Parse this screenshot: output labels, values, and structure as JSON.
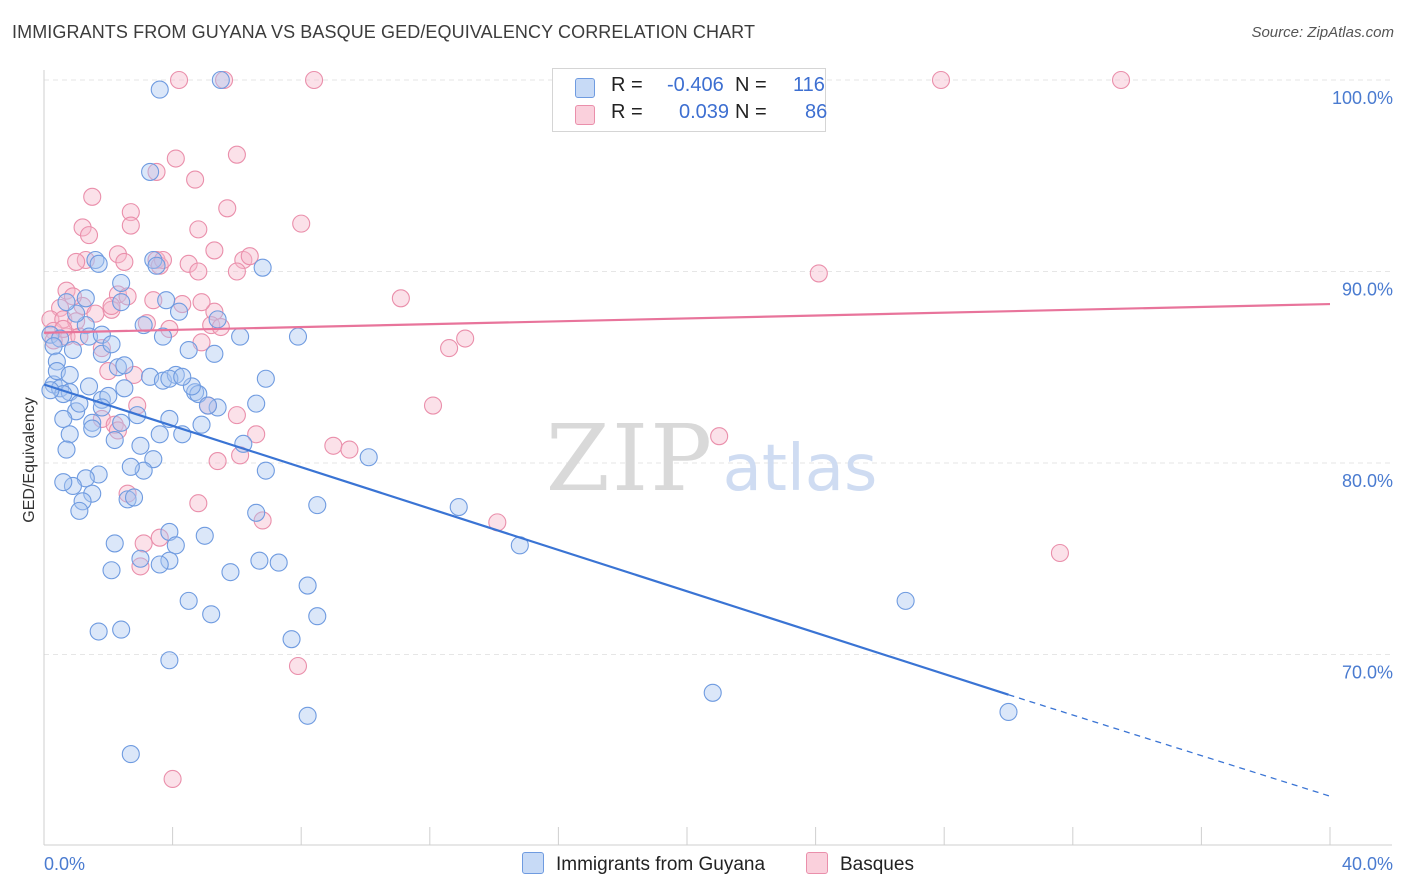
{
  "title": "IMMIGRANTS FROM GUYANA VS BASQUE GED/EQUIVALENCY CORRELATION CHART",
  "source": "Source: ZipAtlas.com",
  "watermark": {
    "zip": "ZIP",
    "atlas": "atlas"
  },
  "legend": {
    "r_label": "R =",
    "n_label": "N =",
    "rows": [
      {
        "r": "-0.406",
        "n": "116",
        "color": "#a9c6f0"
      },
      {
        "r": "0.039",
        "n": "86",
        "color": "#f6b8ca"
      }
    ]
  },
  "bottom_legend": [
    {
      "label": "Immigrants from Guyana",
      "color": "#a9c6f0"
    },
    {
      "label": "Basques",
      "color": "#f6b8ca"
    }
  ],
  "chart_data": {
    "type": "scatter",
    "title": "IMMIGRANTS FROM GUYANA VS BASQUE GED/EQUIVALENCY CORRELATION CHART",
    "ylabel": "GED/Equivalency",
    "xlabel": "",
    "xlim": [
      0,
      40
    ],
    "ylim": [
      62,
      100.5
    ],
    "x_tick_labels": [
      {
        "value": 0,
        "label": "0.0%"
      },
      {
        "value": 40,
        "label": "40.0%"
      }
    ],
    "y_tick_labels": [
      {
        "value": 100,
        "label": "100.0%"
      },
      {
        "value": 90,
        "label": "90.0%"
      },
      {
        "value": 80,
        "label": "80.0%"
      },
      {
        "value": 70,
        "label": "70.0%"
      }
    ],
    "grid": true,
    "legend_position": "top-center",
    "series": [
      {
        "name": "Immigrants from Guyana",
        "color": "#a9c6f0",
        "stroke": "#6f9be0",
        "trend": {
          "x": [
            0,
            30,
            40
          ],
          "y": [
            84.1,
            67.9,
            62.6
          ],
          "solid_until": 30,
          "color": "#3a74d4"
        },
        "points": [
          [
            3.6,
            99.5
          ],
          [
            5.5,
            100
          ],
          [
            3.3,
            95.2
          ],
          [
            1.6,
            90.6
          ],
          [
            1.7,
            90.4
          ],
          [
            3.4,
            90.6
          ],
          [
            3.5,
            90.3
          ],
          [
            6.8,
            90.2
          ],
          [
            2.4,
            89.4
          ],
          [
            1.3,
            88.6
          ],
          [
            2.4,
            88.4
          ],
          [
            3.8,
            88.5
          ],
          [
            4.2,
            87.9
          ],
          [
            5.4,
            87.5
          ],
          [
            1.3,
            87.2
          ],
          [
            3.1,
            87.2
          ],
          [
            0.2,
            86.7
          ],
          [
            0.5,
            86.5
          ],
          [
            1.4,
            86.6
          ],
          [
            1.8,
            86.7
          ],
          [
            3.7,
            86.6
          ],
          [
            6.1,
            86.6
          ],
          [
            7.9,
            86.6
          ],
          [
            0.3,
            86.1
          ],
          [
            0.9,
            85.9
          ],
          [
            1.8,
            85.7
          ],
          [
            4.5,
            85.9
          ],
          [
            5.3,
            85.7
          ],
          [
            0.4,
            85.3
          ],
          [
            2.3,
            85.0
          ],
          [
            3.3,
            84.5
          ],
          [
            3.7,
            84.3
          ],
          [
            4.1,
            84.6
          ],
          [
            6.9,
            84.4
          ],
          [
            0.3,
            84.1
          ],
          [
            0.5,
            83.9
          ],
          [
            0.8,
            83.7
          ],
          [
            0.6,
            83.6
          ],
          [
            1.4,
            84.0
          ],
          [
            2.5,
            83.9
          ],
          [
            4.7,
            83.7
          ],
          [
            4.8,
            83.6
          ],
          [
            1.8,
            83.3
          ],
          [
            6.6,
            83.1
          ],
          [
            1.0,
            82.7
          ],
          [
            2.9,
            82.5
          ],
          [
            5.4,
            82.9
          ],
          [
            0.6,
            82.3
          ],
          [
            1.5,
            82.1
          ],
          [
            4.9,
            82.0
          ],
          [
            0.8,
            81.5
          ],
          [
            2.2,
            81.2
          ],
          [
            4.3,
            81.5
          ],
          [
            3.6,
            81.5
          ],
          [
            6.2,
            81.0
          ],
          [
            0.7,
            80.7
          ],
          [
            3.4,
            80.2
          ],
          [
            10.1,
            80.3
          ],
          [
            1.7,
            79.4
          ],
          [
            3.1,
            79.6
          ],
          [
            6.9,
            79.6
          ],
          [
            1.3,
            79.2
          ],
          [
            0.9,
            78.8
          ],
          [
            1.5,
            78.4
          ],
          [
            1.2,
            78.0
          ],
          [
            2.6,
            78.1
          ],
          [
            2.8,
            78.2
          ],
          [
            8.5,
            77.8
          ],
          [
            12.9,
            77.7
          ],
          [
            1.1,
            77.5
          ],
          [
            6.6,
            77.4
          ],
          [
            3.9,
            76.4
          ],
          [
            2.2,
            75.8
          ],
          [
            4.1,
            75.7
          ],
          [
            14.8,
            75.7
          ],
          [
            7.3,
            74.8
          ],
          [
            3.9,
            74.9
          ],
          [
            3.6,
            74.7
          ],
          [
            2.1,
            74.4
          ],
          [
            5.8,
            74.3
          ],
          [
            8.2,
            73.6
          ],
          [
            4.5,
            72.8
          ],
          [
            5.2,
            72.1
          ],
          [
            8.5,
            72.0
          ],
          [
            1.7,
            71.2
          ],
          [
            2.4,
            71.3
          ],
          [
            7.7,
            70.8
          ],
          [
            3.9,
            69.7
          ],
          [
            20.8,
            68.0
          ],
          [
            8.2,
            66.8
          ],
          [
            30.0,
            67.0
          ],
          [
            2.7,
            64.8
          ],
          [
            26.8,
            72.8
          ],
          [
            0.2,
            83.8
          ],
          [
            2.4,
            82.1
          ],
          [
            3.0,
            80.9
          ],
          [
            1.5,
            81.8
          ],
          [
            0.6,
            79.0
          ],
          [
            2.0,
            83.5
          ],
          [
            3.9,
            82.3
          ],
          [
            4.6,
            84.0
          ],
          [
            5.1,
            83.0
          ],
          [
            1.0,
            87.8
          ],
          [
            0.7,
            88.4
          ],
          [
            2.1,
            86.2
          ],
          [
            2.5,
            85.1
          ],
          [
            3.9,
            84.4
          ],
          [
            4.3,
            84.5
          ],
          [
            0.4,
            84.8
          ],
          [
            1.1,
            83.1
          ],
          [
            0.8,
            84.6
          ],
          [
            1.8,
            82.9
          ],
          [
            2.7,
            79.8
          ],
          [
            5.0,
            76.2
          ],
          [
            3.0,
            75.0
          ],
          [
            6.7,
            74.9
          ]
        ]
      },
      {
        "name": "Basques",
        "color": "#f6b8ca",
        "stroke": "#ea8fab",
        "trend": {
          "x": [
            0,
            40
          ],
          "y": [
            86.8,
            88.3
          ],
          "solid_until": 40,
          "color": "#e8749b"
        },
        "points": [
          [
            4.2,
            100
          ],
          [
            5.6,
            100
          ],
          [
            8.4,
            100
          ],
          [
            27.9,
            100
          ],
          [
            33.5,
            100
          ],
          [
            3.5,
            95.2
          ],
          [
            4.1,
            95.9
          ],
          [
            6.0,
            96.1
          ],
          [
            4.7,
            94.8
          ],
          [
            1.5,
            93.9
          ],
          [
            5.7,
            93.3
          ],
          [
            2.7,
            93.1
          ],
          [
            1.2,
            92.3
          ],
          [
            2.7,
            92.4
          ],
          [
            8.0,
            92.5
          ],
          [
            4.8,
            92.2
          ],
          [
            1.4,
            91.9
          ],
          [
            5.3,
            91.1
          ],
          [
            2.3,
            90.9
          ],
          [
            1.3,
            90.6
          ],
          [
            2.5,
            90.5
          ],
          [
            3.5,
            90.6
          ],
          [
            4.5,
            90.4
          ],
          [
            6.2,
            90.6
          ],
          [
            1.0,
            90.5
          ],
          [
            3.6,
            90.3
          ],
          [
            4.8,
            90.0
          ],
          [
            6.0,
            90.0
          ],
          [
            24.1,
            89.9
          ],
          [
            0.7,
            89.0
          ],
          [
            2.3,
            88.8
          ],
          [
            2.6,
            88.7
          ],
          [
            3.4,
            88.5
          ],
          [
            4.3,
            88.3
          ],
          [
            11.1,
            88.6
          ],
          [
            0.5,
            88.1
          ],
          [
            1.2,
            88.2
          ],
          [
            2.1,
            88.0
          ],
          [
            5.3,
            87.9
          ],
          [
            0.2,
            87.5
          ],
          [
            0.6,
            87.5
          ],
          [
            1.0,
            87.4
          ],
          [
            5.2,
            87.2
          ],
          [
            5.5,
            87.1
          ],
          [
            0.3,
            86.9
          ],
          [
            0.7,
            86.6
          ],
          [
            4.9,
            86.3
          ],
          [
            12.6,
            86.0
          ],
          [
            13.1,
            86.5
          ],
          [
            0.3,
            86.4
          ],
          [
            2.0,
            84.8
          ],
          [
            2.8,
            84.6
          ],
          [
            12.1,
            83.0
          ],
          [
            2.9,
            83.0
          ],
          [
            5.1,
            83.0
          ],
          [
            6.0,
            82.5
          ],
          [
            1.8,
            82.3
          ],
          [
            2.2,
            82.0
          ],
          [
            2.3,
            81.7
          ],
          [
            6.6,
            81.5
          ],
          [
            9.0,
            80.9
          ],
          [
            9.5,
            80.7
          ],
          [
            21.0,
            81.4
          ],
          [
            5.4,
            80.1
          ],
          [
            6.1,
            80.4
          ],
          [
            2.6,
            78.4
          ],
          [
            4.8,
            77.9
          ],
          [
            6.8,
            77.0
          ],
          [
            14.1,
            76.9
          ],
          [
            3.1,
            75.8
          ],
          [
            3.6,
            76.1
          ],
          [
            3.0,
            74.6
          ],
          [
            31.6,
            75.3
          ],
          [
            7.9,
            69.4
          ],
          [
            4.0,
            63.5
          ],
          [
            0.6,
            87.0
          ],
          [
            1.1,
            86.6
          ],
          [
            1.6,
            87.8
          ],
          [
            0.9,
            88.7
          ],
          [
            3.2,
            87.3
          ],
          [
            3.7,
            90.6
          ],
          [
            4.9,
            88.4
          ],
          [
            3.9,
            87.0
          ],
          [
            2.1,
            88.2
          ],
          [
            1.8,
            86.0
          ],
          [
            6.4,
            90.8
          ]
        ]
      }
    ]
  }
}
